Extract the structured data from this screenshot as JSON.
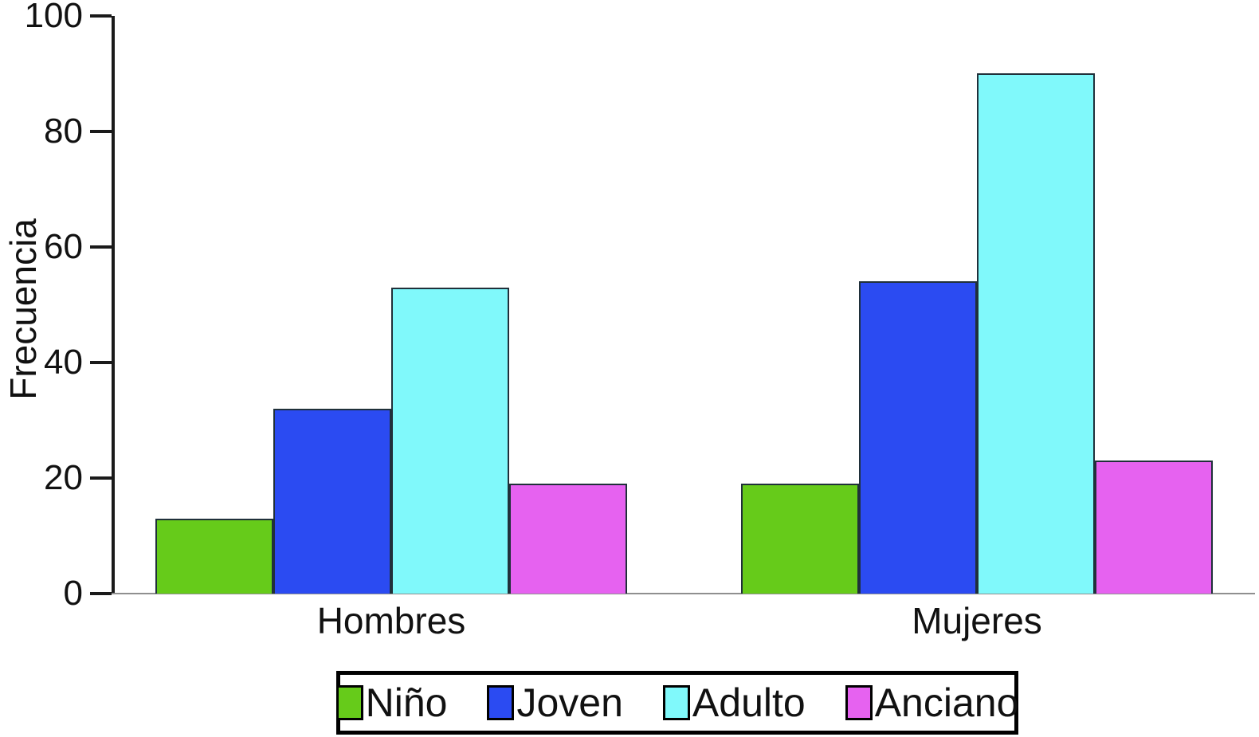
{
  "chart_data": {
    "type": "bar",
    "title": "",
    "ylabel": "Frecuencia",
    "xlabel": "",
    "categories": [
      "Hombres",
      "Mujeres"
    ],
    "series": [
      {
        "name": "Niño",
        "color": "#66CB1A",
        "values": [
          13,
          19
        ]
      },
      {
        "name": "Joven",
        "color": "#2B4BF2",
        "values": [
          32,
          54
        ]
      },
      {
        "name": "Adulto",
        "color": "#80F9FB",
        "values": [
          53,
          90
        ]
      },
      {
        "name": "Anciano",
        "color": "#E662F0",
        "values": [
          19,
          23
        ]
      }
    ],
    "ylim": [
      0,
      100
    ],
    "yticks": [
      0,
      20,
      40,
      60,
      80,
      100
    ],
    "grid": false,
    "legend_position": "bottom",
    "legend_entries": [
      "Niño",
      "Joven",
      "Adulto",
      "Anciano"
    ]
  }
}
